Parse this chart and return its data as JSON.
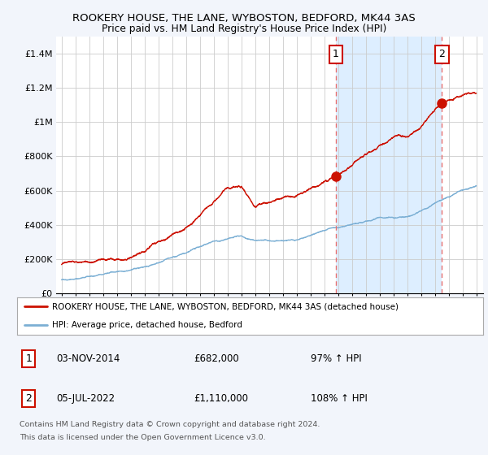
{
  "title1": "ROOKERY HOUSE, THE LANE, WYBOSTON, BEDFORD, MK44 3AS",
  "title2": "Price paid vs. HM Land Registry's House Price Index (HPI)",
  "ylim": [
    0,
    1500000
  ],
  "yticks": [
    0,
    200000,
    400000,
    600000,
    800000,
    1000000,
    1200000,
    1400000
  ],
  "ytick_labels": [
    "£0",
    "£200K",
    "£400K",
    "£600K",
    "£800K",
    "£1M",
    "£1.2M",
    "£1.4M"
  ],
  "xlim_start": 1994.6,
  "xlim_end": 2025.5,
  "xtick_years": [
    1995,
    1996,
    1997,
    1998,
    1999,
    2000,
    2001,
    2002,
    2003,
    2004,
    2005,
    2006,
    2007,
    2008,
    2009,
    2010,
    2011,
    2012,
    2013,
    2014,
    2015,
    2016,
    2017,
    2018,
    2019,
    2020,
    2021,
    2022,
    2023,
    2024,
    2025
  ],
  "hpi_color": "#7bafd4",
  "price_color": "#cc1100",
  "dashed_color": "#e87070",
  "shade_color": "#ddeeff",
  "sale1_x": 2014.84,
  "sale1_y": 682000,
  "sale2_x": 2022.51,
  "sale2_y": 1110000,
  "legend_label1": "ROOKERY HOUSE, THE LANE, WYBOSTON, BEDFORD, MK44 3AS (detached house)",
  "legend_label2": "HPI: Average price, detached house, Bedford",
  "table_row1": [
    "1",
    "03-NOV-2014",
    "£682,000",
    "97% ↑ HPI"
  ],
  "table_row2": [
    "2",
    "05-JUL-2022",
    "£1,110,000",
    "108% ↑ HPI"
  ],
  "footer1": "Contains HM Land Registry data © Crown copyright and database right 2024.",
  "footer2": "This data is licensed under the Open Government Licence v3.0.",
  "bg_color": "#f2f5fb",
  "plot_bg_color": "#ffffff",
  "grid_color": "#cccccc"
}
